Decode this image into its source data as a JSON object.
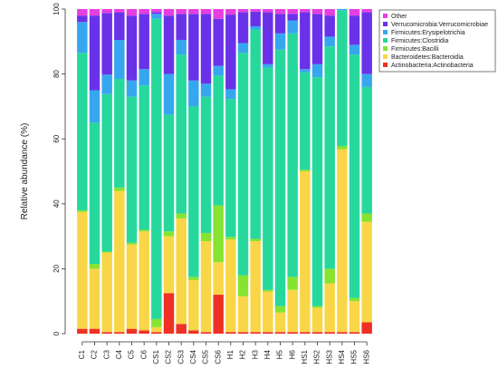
{
  "chart_data": {
    "type": "bar",
    "stacked": true,
    "ylabel": "Relative abundance (%)",
    "ylim": [
      0,
      100
    ],
    "yticks": [
      0,
      20,
      40,
      60,
      80,
      100
    ],
    "grid": false,
    "legend_position": "top-right",
    "categories": [
      "C1",
      "C2",
      "C3",
      "C4",
      "C5",
      "C6",
      "CS1",
      "CS2",
      "CS3",
      "CS4",
      "CS5",
      "CS6",
      "H1",
      "H2",
      "H3",
      "H4",
      "H5",
      "H6",
      "HS1",
      "HS2",
      "HS3",
      "HS4",
      "HS5",
      "HS6"
    ],
    "series": [
      {
        "name": "Actinobacteria:Actinobacteria",
        "color": "#ee3124",
        "values": [
          1.5,
          1.5,
          0.5,
          0.5,
          1.5,
          1,
          0.5,
          12.5,
          3,
          1,
          0.5,
          12,
          0.5,
          0.5,
          0.5,
          0.5,
          0.5,
          0.5,
          0.5,
          0.5,
          0.5,
          0.5,
          0.5,
          3.5
        ]
      },
      {
        "name": "Bacteroidetes:Bacteroidia",
        "color": "#f9d648",
        "values": [
          36,
          18.5,
          24.5,
          43.5,
          26,
          30.5,
          1.5,
          17.5,
          32.5,
          15.5,
          28,
          10,
          28.5,
          11,
          28,
          12.5,
          6,
          13,
          49.5,
          7.5,
          15,
          56.5,
          9.5,
          31
        ]
      },
      {
        "name": "Firmicutes:Bacilli",
        "color": "#86e430",
        "values": [
          0.5,
          1.5,
          0.3,
          1,
          0.5,
          0.5,
          2.5,
          1.5,
          1.5,
          1,
          2.5,
          17.5,
          0.8,
          6.5,
          0.7,
          0.5,
          2,
          4,
          0.5,
          0.5,
          4.5,
          1,
          1,
          2.5
        ]
      },
      {
        "name": "Firmicutes:Clostridia",
        "color": "#27d89d",
        "values": [
          48.5,
          43.5,
          48.5,
          33.5,
          45,
          44.5,
          92.5,
          36,
          49,
          52.5,
          42,
          40,
          42.5,
          68.5,
          64.5,
          68.5,
          79,
          75,
          30,
          70.5,
          68.5,
          42,
          75,
          39
        ]
      },
      {
        "name": "Firmicutes:Erysipelotrichia",
        "color": "#36a7ee",
        "values": [
          9.5,
          10,
          6,
          12,
          5,
          5,
          1.5,
          12.5,
          4.5,
          8,
          4,
          3,
          3,
          3,
          1,
          1,
          5,
          4,
          1,
          4,
          3,
          0.3,
          3,
          4
        ]
      },
      {
        "name": "Verrucomicrobia:Verrucomicrobiae",
        "color": "#6a32e8",
        "values": [
          2,
          23,
          19,
          8.5,
          20,
          17,
          0.5,
          18,
          8,
          20.5,
          21.5,
          14.5,
          23,
          9.5,
          4.5,
          16,
          6,
          2,
          17.5,
          15.5,
          6.5,
          0,
          9,
          19
        ]
      },
      {
        "name": "Other",
        "color": "#e53fe0",
        "values": [
          2,
          2,
          1.2,
          1,
          2,
          1.5,
          1,
          2,
          1.5,
          1.5,
          1.5,
          3,
          1.7,
          1,
          0.8,
          1,
          1.5,
          1.5,
          1,
          1.5,
          2,
          0,
          2,
          1
        ]
      }
    ]
  }
}
